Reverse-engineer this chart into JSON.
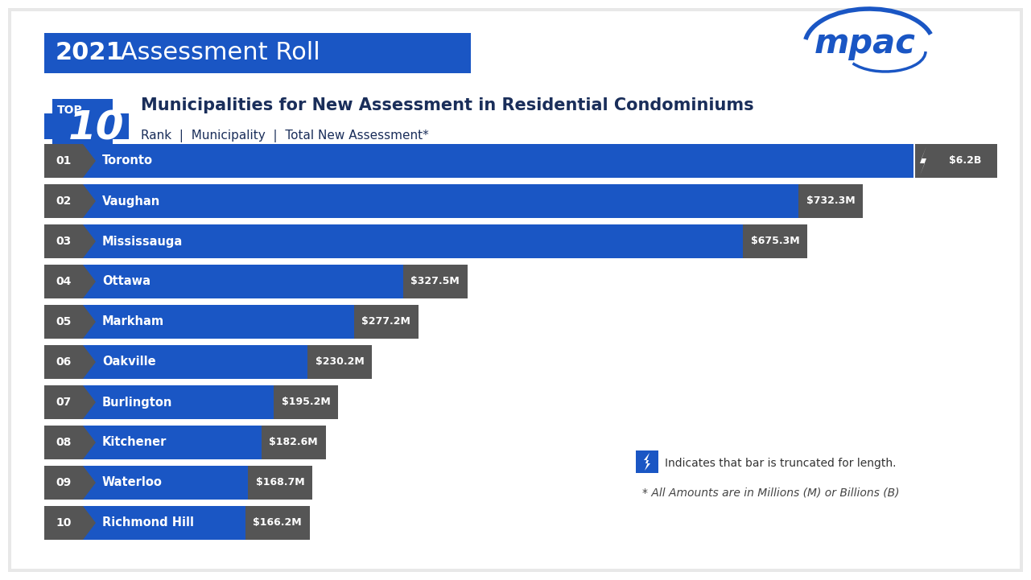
{
  "title_year": "2021",
  "title_rest": " Assessment Roll",
  "subtitle_main": "Municipalities for New Assessment in Residential Condominiums",
  "subtitle_sub": "Rank  |  Municipality  |  Total New Assessment*",
  "ranks": [
    "01",
    "02",
    "03",
    "04",
    "05",
    "06",
    "07",
    "08",
    "09",
    "10"
  ],
  "municipalities": [
    "Toronto",
    "Vaughan",
    "Mississauga",
    "Ottawa",
    "Markham",
    "Oakville",
    "Burlington",
    "Kitchener",
    "Waterloo",
    "Richmond Hill"
  ],
  "values_display": [
    "$6.2B",
    "$732.3M",
    "$675.3M",
    "$327.5M",
    "$277.2M",
    "$230.2M",
    "$195.2M",
    "$182.6M",
    "$168.7M",
    "$166.2M"
  ],
  "values_numeric": [
    6200,
    732.3,
    675.3,
    327.5,
    277.2,
    230.2,
    195.2,
    182.6,
    168.7,
    166.2
  ],
  "bar_max_display": 850,
  "bar_color": "#1a56c4",
  "rank_bg_color": "#555555",
  "label_bg_color": "#555555",
  "background_color": "#ffffff",
  "dark_text_color": "#1a2e5a",
  "note_line1": "Indicates that bar is truncated for length.",
  "note_line2": "* All Amounts are in Millions (M) or Billions (B)"
}
